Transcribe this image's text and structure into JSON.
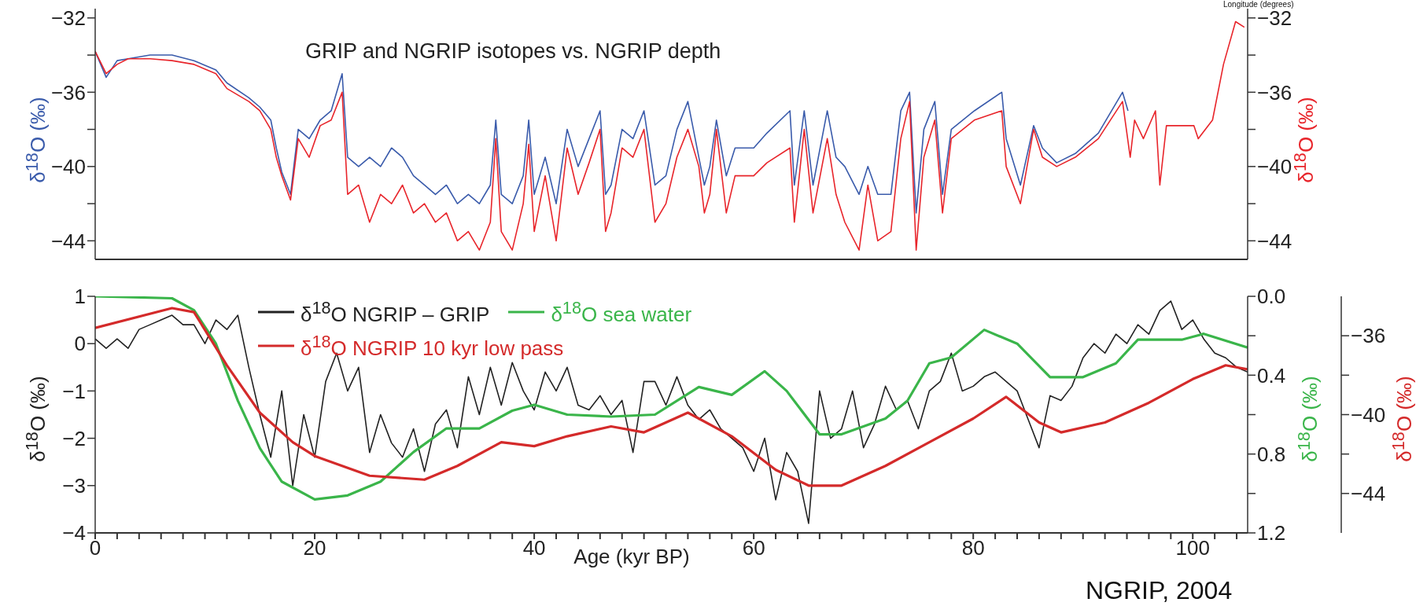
{
  "chart_data": [
    {
      "type": "line",
      "title": "GRIP and NGRIP isotopes vs. NGRIP depth",
      "ylabel": "δ$^{18}$O (‰)",
      "y2label": "δ$^{18}$O (‰)",
      "annotations": [
        "Longitude (degrees)"
      ],
      "tick_labels": "y",
      "xlim": [
        0,
        105
      ],
      "ylim": [
        -45,
        -31.5
      ],
      "yticks": [
        -32,
        {
          "value": -34,
          "label": null
        },
        -36,
        {
          "value": -38,
          "label": null
        },
        -40,
        {
          "value": -42,
          "label": null
        },
        -44
      ],
      "y2lim": [
        -45,
        -31.5
      ],
      "y2ticks": [
        -32,
        {
          "value": -34,
          "label": null
        },
        -36,
        {
          "value": -38,
          "label": null
        },
        -40,
        {
          "value": -42,
          "label": null
        },
        -44
      ],
      "series": [
        {
          "color": "#3a5bab",
          "x": [
            0,
            1,
            2,
            3,
            5,
            7,
            9,
            11,
            12,
            14,
            15,
            16,
            16.5,
            17,
            17.8,
            18.5,
            19.5,
            20.5,
            21.5,
            22.5,
            23,
            24,
            25,
            26,
            27,
            28,
            29,
            30,
            31,
            32,
            33,
            34,
            35,
            36,
            36.5,
            37,
            38,
            39,
            39.5,
            40,
            41,
            42,
            43,
            44,
            45,
            46,
            46.5,
            47,
            48,
            49,
            50,
            51,
            52,
            53,
            54,
            55,
            55.5,
            56,
            56.6,
            57.5,
            58.3,
            60,
            61.2,
            63.3,
            63.7,
            64.6,
            65.4,
            66.7,
            67.5,
            68.3,
            69.6,
            70.4,
            71.3,
            72.5,
            73.4,
            74.2,
            74.8,
            75.5,
            76.5,
            77.2,
            78,
            80.1,
            82.6,
            83,
            84.3,
            85.5,
            86.3,
            87.6,
            89.3,
            91.4,
            93.6,
            94.1
          ],
          "values": [
            -33.8,
            -35.2,
            -34.3,
            -34.2,
            -34.0,
            -34.0,
            -34.3,
            -34.8,
            -35.5,
            -36.3,
            -36.8,
            -37.5,
            -39.0,
            -40.3,
            -41.5,
            -38.0,
            -38.5,
            -37.5,
            -37.0,
            -35.0,
            -39.5,
            -40.0,
            -39.5,
            -40.0,
            -39.0,
            -39.5,
            -40.5,
            -41.0,
            -41.5,
            -41.0,
            -42.0,
            -41.5,
            -42.0,
            -41.0,
            -37.5,
            -41.5,
            -42.0,
            -40.5,
            -37.5,
            -41.5,
            -39.5,
            -42.0,
            -38.0,
            -40.0,
            -38.5,
            -37.0,
            -41.5,
            -41.0,
            -38.0,
            -38.5,
            -37.0,
            -41.0,
            -40.5,
            -38.0,
            -36.5,
            -39.5,
            -41.0,
            -40.0,
            -37.5,
            -40.5,
            -39.0,
            -39.0,
            -38.2,
            -37.0,
            -41.0,
            -37.0,
            -41.0,
            -37.0,
            -39.5,
            -40.0,
            -41.5,
            -40.0,
            -41.5,
            -41.5,
            -37.0,
            -36.0,
            -42.5,
            -38.0,
            -36.5,
            -41.5,
            -38.0,
            -37.0,
            -36.0,
            -38.5,
            -41.0,
            -37.8,
            -39.0,
            -39.8,
            -39.3,
            -38.2,
            -36.0,
            -37.0
          ]
        },
        {
          "color": "#e8252b",
          "axis": "y2",
          "x": [
            0,
            1,
            2,
            3,
            5,
            7,
            9,
            11,
            12,
            14,
            15,
            16,
            16.5,
            17,
            17.8,
            18.5,
            19.5,
            20.5,
            21.5,
            22.5,
            23,
            24,
            25,
            26,
            27,
            28,
            29,
            30,
            31,
            32,
            33,
            34,
            35,
            36,
            36.5,
            37,
            38,
            39,
            39.5,
            40,
            41,
            42,
            43,
            44,
            45,
            46,
            46.5,
            47,
            48,
            49,
            50,
            51,
            52,
            53,
            54,
            55,
            55.5,
            56,
            56.6,
            57.5,
            58.3,
            60,
            61.2,
            63.3,
            63.7,
            64.6,
            65.4,
            66.7,
            67.5,
            68.3,
            69.6,
            70.4,
            71.3,
            72.5,
            73.4,
            74.2,
            74.8,
            75.5,
            76.5,
            77.2,
            78,
            80.1,
            82.6,
            83,
            84.3,
            85.5,
            86.3,
            87.6,
            89.3,
            91.4,
            93.6,
            94.3,
            94.7,
            95.5,
            96.6,
            97,
            97.6,
            100.1,
            100.5,
            101.8,
            102.8,
            103.9,
            104.7
          ],
          "values": [
            -33.8,
            -35.0,
            -34.5,
            -34.2,
            -34.2,
            -34.3,
            -34.5,
            -35.0,
            -35.8,
            -36.5,
            -37.0,
            -38.0,
            -39.5,
            -40.5,
            -41.8,
            -38.5,
            -39.5,
            -37.8,
            -37.5,
            -36.0,
            -41.5,
            -41.0,
            -43.0,
            -41.5,
            -42.0,
            -41.0,
            -42.5,
            -42.0,
            -43.0,
            -42.5,
            -44.0,
            -43.5,
            -44.5,
            -43.0,
            -38.5,
            -43.5,
            -44.5,
            -42.0,
            -38.8,
            -43.5,
            -40.5,
            -44.0,
            -39.0,
            -41.5,
            -39.8,
            -38.0,
            -43.5,
            -42.5,
            -39.0,
            -39.5,
            -38.0,
            -43.0,
            -42.0,
            -39.5,
            -38.0,
            -40.0,
            -42.5,
            -41.5,
            -38.0,
            -42.5,
            -40.5,
            -40.5,
            -39.8,
            -39.0,
            -43.0,
            -38.0,
            -42.5,
            -38.5,
            -41.5,
            -43.0,
            -44.5,
            -41.0,
            -44.0,
            -43.5,
            -38.5,
            -36.5,
            -44.5,
            -39.5,
            -37.5,
            -42.5,
            -38.5,
            -37.5,
            -37.0,
            -40.0,
            -42.0,
            -38.0,
            -39.5,
            -40.0,
            -39.5,
            -38.5,
            -36.5,
            -39.5,
            -37.5,
            -38.5,
            -37.0,
            -41.0,
            -37.8,
            -37.8,
            -38.5,
            -37.5,
            -34.5,
            -32.2,
            -32.5
          ]
        }
      ]
    },
    {
      "type": "line",
      "xlabel": "Age (kyr BP)",
      "ylabel": "δ$^{18}$O (‰)",
      "y2label": "δ$^{18}$O (‰)",
      "y3label": "δ$^{18}$O (‰)",
      "legend": "top",
      "annotations": [
        "NGRIP, 2004"
      ],
      "xlim": [
        0,
        105
      ],
      "xticks": [
        0,
        {
          "value": 2,
          "label": null
        },
        {
          "value": 4,
          "label": null
        },
        {
          "value": 6,
          "label": null
        },
        {
          "value": 8,
          "label": null
        },
        {
          "value": 10,
          "label": null
        },
        {
          "value": 12,
          "label": null
        },
        {
          "value": 14,
          "label": null
        },
        {
          "value": 16,
          "label": null
        },
        {
          "value": 18,
          "label": null
        },
        20,
        {
          "value": 22,
          "label": null
        },
        {
          "value": 24,
          "label": null
        },
        {
          "value": 26,
          "label": null
        },
        {
          "value": 28,
          "label": null
        },
        {
          "value": 30,
          "label": null
        },
        {
          "value": 32,
          "label": null
        },
        {
          "value": 34,
          "label": null
        },
        {
          "value": 36,
          "label": null
        },
        {
          "value": 38,
          "label": null
        },
        40,
        {
          "value": 42,
          "label": null
        },
        {
          "value": 44,
          "label": null
        },
        {
          "value": 46,
          "label": null
        },
        {
          "value": 48,
          "label": null
        },
        {
          "value": 50,
          "label": null
        },
        {
          "value": 52,
          "label": null
        },
        {
          "value": 54,
          "label": null
        },
        {
          "value": 56,
          "label": null
        },
        {
          "value": 58,
          "label": null
        },
        60,
        {
          "value": 62,
          "label": null
        },
        {
          "value": 64,
          "label": null
        },
        {
          "value": 66,
          "label": null
        },
        {
          "value": 68,
          "label": null
        },
        {
          "value": 70,
          "label": null
        },
        {
          "value": 72,
          "label": null
        },
        {
          "value": 74,
          "label": null
        },
        {
          "value": 76,
          "label": null
        },
        {
          "value": 78,
          "label": null
        },
        80,
        {
          "value": 82,
          "label": null
        },
        {
          "value": 84,
          "label": null
        },
        {
          "value": 86,
          "label": null
        },
        {
          "value": 88,
          "label": null
        },
        {
          "value": 90,
          "label": null
        },
        {
          "value": 92,
          "label": null
        },
        {
          "value": 94,
          "label": null
        },
        {
          "value": 96,
          "label": null
        },
        {
          "value": 98,
          "label": null
        },
        100,
        {
          "value": 102,
          "label": null
        },
        {
          "value": 104,
          "label": null
        }
      ],
      "ylim": [
        -4,
        1
      ],
      "yticks": [
        -4,
        -3,
        -2,
        -1,
        0,
        1
      ],
      "y2lim": [
        1.2,
        0
      ],
      "y2ticks": [
        {
          "value": 0,
          "label": "0.0"
        },
        {
          "value": 0.2,
          "label": null
        },
        0.4,
        {
          "value": 0.6,
          "label": null
        },
        0.8,
        {
          "value": 1,
          "label": null
        },
        1.2
      ],
      "y3lim": [
        -46,
        -34
      ],
      "y3ticks": [
        -36,
        {
          "value": -38,
          "label": null
        },
        -40,
        {
          "value": -42,
          "label": null
        },
        -44
      ],
      "series": [
        {
          "name": "δ$^{18}$O NGRIP – GRIP",
          "color": "#222222",
          "x": [
            0,
            1,
            2,
            3,
            4,
            5,
            6,
            7,
            8,
            9,
            10,
            11,
            12,
            13,
            14,
            15,
            16,
            17,
            18,
            19,
            20,
            21,
            22,
            23,
            24,
            25,
            26,
            27,
            28,
            29,
            30,
            31,
            32,
            33,
            34,
            35,
            36,
            37,
            38,
            39,
            40,
            41,
            42,
            43,
            44,
            45,
            46,
            47,
            48,
            49,
            50,
            51,
            52,
            53,
            54,
            55,
            56,
            57,
            58,
            59,
            60,
            61,
            62,
            63,
            64,
            65,
            66,
            67,
            68,
            69,
            70,
            71,
            72,
            73,
            74,
            75,
            76,
            77,
            78,
            79,
            80,
            81,
            82,
            83,
            84,
            85,
            86,
            87,
            88,
            89,
            90,
            91,
            92,
            93,
            94,
            95,
            96,
            97,
            98,
            99,
            100,
            101,
            102,
            103,
            104,
            105
          ],
          "values": [
            0.1,
            -0.1,
            0.1,
            -0.1,
            0.3,
            0.4,
            0.5,
            0.6,
            0.4,
            0.4,
            0.0,
            0.5,
            0.3,
            0.6,
            -0.5,
            -1.5,
            -2.4,
            -1.0,
            -3.0,
            -1.5,
            -2.4,
            -0.8,
            -0.2,
            -1.0,
            -0.5,
            -2.3,
            -1.5,
            -2.1,
            -2.4,
            -1.8,
            -2.7,
            -1.7,
            -1.4,
            -2.2,
            -0.7,
            -1.5,
            -0.5,
            -1.3,
            -0.4,
            -1.0,
            -1.4,
            -0.6,
            -1.0,
            -0.5,
            -1.3,
            -1.4,
            -1.1,
            -1.5,
            -1.2,
            -2.3,
            -0.8,
            -0.8,
            -1.3,
            -0.7,
            -1.3,
            -1.6,
            -1.4,
            -1.8,
            -2.0,
            -2.2,
            -2.7,
            -2.0,
            -3.3,
            -2.3,
            -2.7,
            -3.8,
            -1.0,
            -2.0,
            -1.8,
            -1.0,
            -2.2,
            -1.7,
            -0.9,
            -1.4,
            -1.2,
            -1.8,
            -1.0,
            -0.8,
            -0.2,
            -1.0,
            -0.9,
            -0.7,
            -0.6,
            -0.8,
            -1.0,
            -1.6,
            -2.2,
            -1.1,
            -1.2,
            -0.9,
            -0.3,
            0.0,
            -0.2,
            0.2,
            0.0,
            0.4,
            0.2,
            0.7,
            0.9,
            0.3,
            0.5,
            0.1,
            -0.2,
            -0.3,
            -0.5,
            -0.6
          ]
        },
        {
          "name": "δ$^{18}$O sea water",
          "color": "#3ab54a",
          "axis": "y2",
          "x": [
            0,
            7,
            9,
            11,
            13,
            15,
            17,
            20,
            23,
            26,
            29,
            32,
            35,
            38,
            40,
            43,
            47,
            51,
            55,
            58,
            61,
            63,
            66,
            68,
            72,
            74,
            76,
            78,
            81,
            84,
            87,
            90,
            93,
            95,
            99,
            101,
            105
          ],
          "values": [
            0.0,
            0.01,
            0.07,
            0.24,
            0.53,
            0.77,
            0.94,
            1.03,
            1.01,
            0.94,
            0.79,
            0.67,
            0.67,
            0.58,
            0.55,
            0.6,
            0.61,
            0.6,
            0.46,
            0.5,
            0.38,
            0.48,
            0.7,
            0.7,
            0.62,
            0.53,
            0.34,
            0.31,
            0.17,
            0.24,
            0.41,
            0.41,
            0.34,
            0.22,
            0.22,
            0.19,
            0.26
          ]
        },
        {
          "name": "δ$^{18}$O NGRIP 10 kyr low pass",
          "color": "#d42a2a",
          "axis": "y3",
          "x": [
            0,
            7,
            9,
            12,
            15,
            18,
            20,
            25,
            30,
            33,
            37,
            40,
            43,
            47,
            50,
            54,
            58,
            62,
            65,
            68,
            72,
            76,
            80,
            83,
            86,
            88,
            92,
            96,
            100,
            103,
            105
          ],
          "values": [
            -35.6,
            -34.6,
            -34.8,
            -37.5,
            -39.9,
            -41.4,
            -42.1,
            -43.1,
            -43.3,
            -42.6,
            -41.4,
            -41.6,
            -41.1,
            -40.6,
            -40.9,
            -39.9,
            -41.1,
            -42.8,
            -43.6,
            -43.6,
            -42.6,
            -41.4,
            -40.2,
            -39.1,
            -40.4,
            -40.9,
            -40.4,
            -39.4,
            -38.2,
            -37.5,
            -37.7
          ]
        }
      ]
    }
  ]
}
